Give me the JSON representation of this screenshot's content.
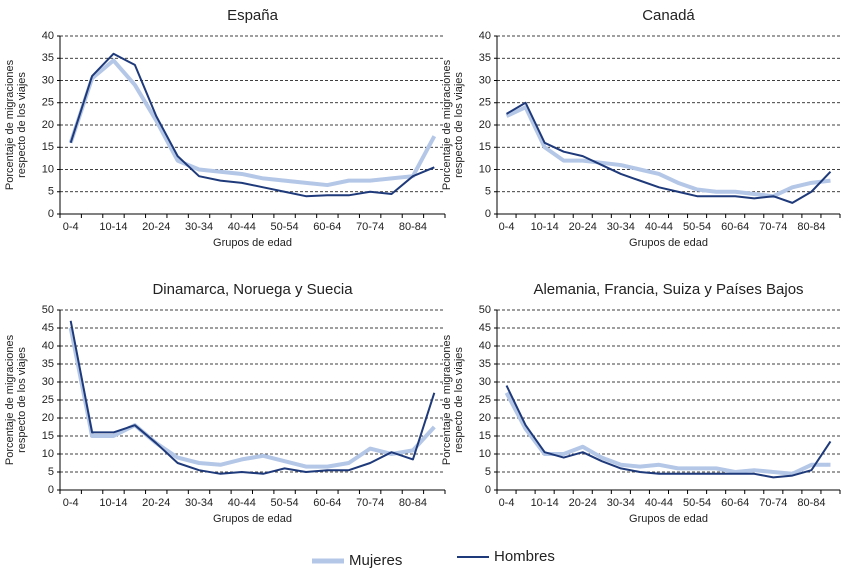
{
  "chart_data": [
    {
      "type": "line",
      "title": "España",
      "xlabel": "Grupos de edad",
      "ylabel": [
        "Porcentaje de migraciones",
        "respecto de los viajes"
      ],
      "categories": [
        "0-4",
        null,
        "10-14",
        null,
        "20-24",
        null,
        "30-34",
        null,
        "40-44",
        null,
        "50-54",
        null,
        "60-64",
        null,
        "70-74",
        null,
        "80-84",
        null
      ],
      "series": [
        {
          "name": "Mujeres",
          "color": "#b4c7e7",
          "values": [
            16,
            30.5,
            34.5,
            29,
            21,
            12,
            10,
            9.5,
            9,
            8,
            7.5,
            7,
            6.5,
            7.5,
            7.5,
            8,
            8.5,
            17.5
          ]
        },
        {
          "name": "Hombres",
          "color": "#1f3a7a",
          "values": [
            16,
            31,
            36,
            33.5,
            22,
            13,
            8.5,
            7.5,
            7,
            6,
            5,
            4,
            4.2,
            4.2,
            5,
            4.5,
            8.5,
            10.5
          ]
        }
      ],
      "ylim": [
        0,
        40
      ],
      "yticks": [
        0,
        5,
        10,
        15,
        20,
        25,
        30,
        35,
        40
      ],
      "grid": true
    },
    {
      "type": "line",
      "title": "Canadá",
      "xlabel": "Grupos de edad",
      "ylabel": [
        "Porcentaje de migraciones",
        "respecto de los viajes"
      ],
      "categories": [
        "0-4",
        null,
        "10-14",
        null,
        "20-24",
        null,
        "30-34",
        null,
        "40-44",
        null,
        "50-54",
        null,
        "60-64",
        null,
        "70-74",
        null,
        "80-84",
        null
      ],
      "series": [
        {
          "name": "Mujeres",
          "color": "#b4c7e7",
          "values": [
            22,
            24,
            15,
            12,
            12,
            11.5,
            11,
            10,
            9,
            7,
            5.5,
            5,
            5,
            4.5,
            4,
            6,
            7,
            7.5
          ]
        },
        {
          "name": "Hombres",
          "color": "#1f3a7a",
          "values": [
            22.5,
            25,
            16,
            14,
            13,
            11,
            9,
            7.5,
            6,
            5,
            4,
            4,
            4,
            3.5,
            4,
            2.5,
            5,
            9.5
          ]
        }
      ],
      "ylim": [
        0,
        40
      ],
      "yticks": [
        0,
        5,
        10,
        15,
        20,
        25,
        30,
        35,
        40
      ],
      "grid": true
    },
    {
      "type": "line",
      "title": "Dinamarca, Noruega y Suecia",
      "xlabel": "Grupos de edad",
      "ylabel": [
        "Porcentaje de migraciones",
        "respecto de los viajes"
      ],
      "categories": [
        "0-4",
        null,
        "10-14",
        null,
        "20-24",
        null,
        "30-34",
        null,
        "40-44",
        null,
        "50-54",
        null,
        "60-64",
        null,
        "70-74",
        null,
        "80-84",
        null
      ],
      "series": [
        {
          "name": "Mujeres",
          "color": "#b4c7e7",
          "values": [
            45,
            15,
            15,
            18,
            13,
            9,
            7.5,
            7,
            8.5,
            9.5,
            8,
            6.5,
            6.5,
            7.5,
            11.5,
            10,
            11,
            17.5
          ]
        },
        {
          "name": "Hombres",
          "color": "#1f3a7a",
          "values": [
            47,
            16,
            16,
            18,
            13,
            7.5,
            5.5,
            4.5,
            5,
            4.5,
            6,
            5,
            5.5,
            5.5,
            7.5,
            10.5,
            8.5,
            27
          ]
        }
      ],
      "ylim": [
        0,
        50
      ],
      "yticks": [
        0,
        5,
        10,
        15,
        20,
        25,
        30,
        35,
        40,
        45,
        50
      ],
      "grid": true
    },
    {
      "type": "line",
      "title": "Alemania, Francia, Suiza y Países Bajos",
      "xlabel": "Grupos de edad",
      "ylabel": [
        "Porcentaje de migraciones",
        "respecto de los viajes"
      ],
      "categories": [
        "0-4",
        null,
        "10-14",
        null,
        "20-24",
        null,
        "30-34",
        null,
        "40-44",
        null,
        "50-54",
        null,
        "60-64",
        null,
        "70-74",
        null,
        "80-84",
        null
      ],
      "series": [
        {
          "name": "Mujeres",
          "color": "#b4c7e7",
          "values": [
            27,
            17,
            10,
            10,
            12,
            9,
            7,
            6.5,
            7,
            6,
            6,
            6,
            5,
            5.5,
            5,
            4.5,
            7,
            7
          ]
        },
        {
          "name": "Hombres",
          "color": "#1f3a7a",
          "values": [
            29,
            18,
            10.5,
            9,
            10.5,
            8,
            6,
            5,
            4.5,
            4.5,
            4.5,
            4.5,
            4.5,
            4.5,
            3.5,
            4,
            5.5,
            13.5
          ]
        }
      ],
      "ylim": [
        0,
        50
      ],
      "yticks": [
        0,
        5,
        10,
        15,
        20,
        25,
        30,
        35,
        40,
        45,
        50
      ],
      "grid": true
    }
  ]
}
